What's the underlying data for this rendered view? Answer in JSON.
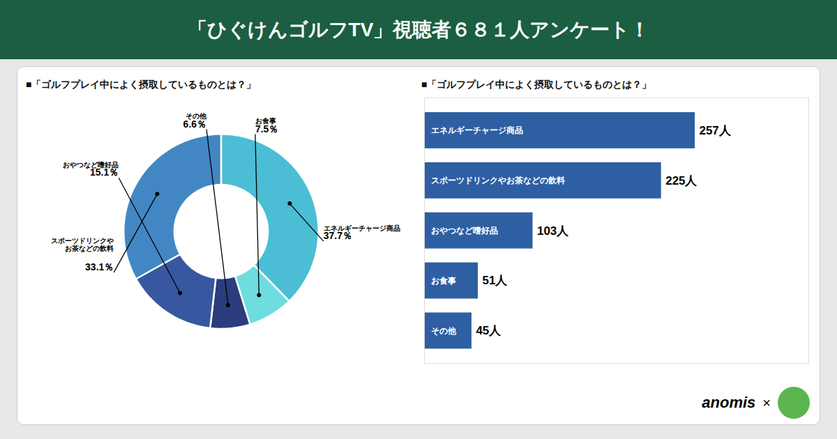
{
  "title": "「ひぐけんゴルフTV」視聴者６８１人アンケート！",
  "annotations": [
    "anomis",
    "×"
  ],
  "chart_data": [
    {
      "type": "pie",
      "title": "■「ゴルフプレイ中によく摂取しているものとは？」",
      "categories": [
        "エネルギーチャージ商品",
        "お食事",
        "その他",
        "おやつなど嗜好品",
        "スポーツドリンクや\nお茶などの飲料"
      ],
      "values": [
        37.7,
        7.5,
        6.6,
        15.1,
        33.1
      ],
      "value_labels": [
        "37.7％",
        "7.5％",
        "6.6％",
        "15.1％",
        "33.1％"
      ],
      "colors": [
        "#4bbdd4",
        "#6edde0",
        "#2b3d7c",
        "#3758a0",
        "#4287c4"
      ],
      "data_labels": true
    },
    {
      "type": "bar",
      "title": "■「ゴルフプレイ中によく摂取しているものとは？」",
      "orientation": "horizontal",
      "categories": [
        "エネルギーチャージ商品",
        "スポーツドリンクやお茶などの飲料",
        "おやつなど嗜好品",
        "お食事",
        "その他"
      ],
      "values": [
        257,
        225,
        103,
        51,
        45
      ],
      "value_labels": [
        "257人",
        "225人",
        "103人",
        "51人",
        "45人"
      ],
      "color": "#2e5fa3",
      "xlim": [
        0,
        364.94
      ],
      "data_labels": true,
      "tick_labels": false
    }
  ]
}
